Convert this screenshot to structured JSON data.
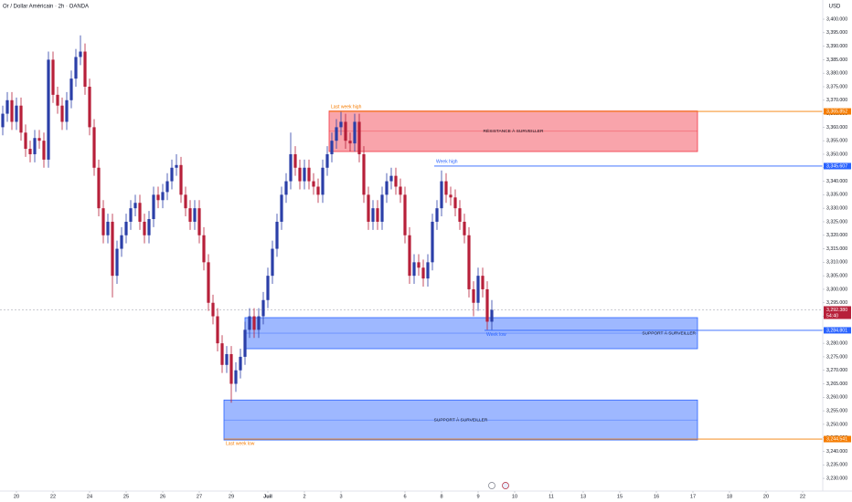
{
  "chart_data": {
    "type": "candlestick",
    "title": "Or / Dollar Américain · 2h · OANDA",
    "currency": "USD",
    "up_color": "#2b3fa8",
    "down_color": "#b7203a",
    "open": [
      3360,
      3365,
      3370,
      3362,
      3368,
      3358,
      3352,
      3350,
      3356,
      3355,
      3348,
      3385,
      3372,
      3368,
      3362,
      3370,
      3378,
      3386,
      3388,
      3375,
      3360,
      3345,
      3330,
      3320,
      3325,
      3305,
      3315,
      3320,
      3325,
      3330,
      3332,
      3325,
      3320,
      3326,
      3335,
      3333,
      3336,
      3340,
      3345,
      3346,
      3335,
      3330,
      3325,
      3330,
      3320,
      3310,
      3295,
      3290,
      3280,
      3272,
      3276,
      3265,
      3270,
      3275,
      3285,
      3290,
      3285,
      3290,
      3296,
      3305,
      3315,
      3325,
      3335,
      3340,
      3350,
      3345,
      3340,
      3345,
      3340,
      3338,
      3335,
      3345,
      3350,
      3355,
      3360,
      3362,
      3355,
      3354,
      3362,
      3350,
      3335,
      3325,
      3330,
      3325,
      3335,
      3340,
      3342,
      3338,
      3335,
      3320,
      3305,
      3310,
      3308,
      3304,
      3310,
      3325,
      3330,
      3340,
      3335,
      3334,
      3330,
      3325,
      3320,
      3300,
      3295,
      3305,
      3300,
      3288
    ],
    "high": [
      3368,
      3373,
      3373,
      3371,
      3371,
      3361,
      3355,
      3359,
      3359,
      3358,
      3388,
      3388,
      3375,
      3371,
      3373,
      3381,
      3389,
      3394,
      3391,
      3378,
      3363,
      3348,
      3333,
      3328,
      3328,
      3318,
      3323,
      3328,
      3333,
      3335,
      3335,
      3328,
      3329,
      3338,
      3338,
      3339,
      3343,
      3348,
      3350,
      3349,
      3338,
      3333,
      3333,
      3333,
      3323,
      3313,
      3298,
      3293,
      3283,
      3279,
      3279,
      3273,
      3278,
      3288,
      3293,
      3293,
      3293,
      3299,
      3308,
      3318,
      3328,
      3338,
      3343,
      3358,
      3353,
      3348,
      3348,
      3348,
      3343,
      3341,
      3348,
      3353,
      3358,
      3363,
      3366,
      3365,
      3358,
      3365,
      3365,
      3353,
      3338,
      3333,
      3333,
      3338,
      3343,
      3345,
      3345,
      3341,
      3338,
      3323,
      3313,
      3313,
      3311,
      3313,
      3328,
      3333,
      3344,
      3343,
      3338,
      3337,
      3333,
      3328,
      3323,
      3303,
      3308,
      3308,
      3303,
      3296
    ],
    "low": [
      3357,
      3362,
      3359,
      3359,
      3355,
      3349,
      3347,
      3347,
      3352,
      3345,
      3345,
      3369,
      3365,
      3359,
      3359,
      3367,
      3375,
      3383,
      3372,
      3357,
      3342,
      3327,
      3317,
      3317,
      3297,
      3302,
      3312,
      3317,
      3322,
      3327,
      3322,
      3317,
      3317,
      3323,
      3330,
      3330,
      3333,
      3337,
      3342,
      3332,
      3327,
      3322,
      3322,
      3317,
      3307,
      3292,
      3287,
      3277,
      3269,
      3269,
      3258,
      3262,
      3267,
      3272,
      3282,
      3282,
      3282,
      3287,
      3293,
      3302,
      3312,
      3322,
      3332,
      3337,
      3342,
      3337,
      3337,
      3337,
      3335,
      3332,
      3332,
      3342,
      3347,
      3352,
      3357,
      3352,
      3351,
      3351,
      3347,
      3332,
      3322,
      3322,
      3322,
      3322,
      3332,
      3337,
      3335,
      3332,
      3317,
      3302,
      3302,
      3305,
      3301,
      3301,
      3307,
      3322,
      3327,
      3332,
      3331,
      3327,
      3322,
      3317,
      3297,
      3290,
      3292,
      3297,
      3285,
      3285
    ],
    "close": [
      3365,
      3370,
      3362,
      3368,
      3358,
      3352,
      3350,
      3356,
      3355,
      3348,
      3385,
      3372,
      3368,
      3362,
      3370,
      3378,
      3386,
      3388,
      3375,
      3360,
      3345,
      3330,
      3320,
      3325,
      3305,
      3315,
      3320,
      3325,
      3330,
      3332,
      3325,
      3320,
      3326,
      3335,
      3333,
      3336,
      3340,
      3345,
      3346,
      3335,
      3330,
      3325,
      3330,
      3320,
      3310,
      3295,
      3290,
      3280,
      3272,
      3276,
      3265,
      3270,
      3275,
      3285,
      3290,
      3285,
      3290,
      3296,
      3305,
      3315,
      3325,
      3335,
      3340,
      3350,
      3345,
      3340,
      3345,
      3340,
      3338,
      3335,
      3345,
      3350,
      3355,
      3360,
      3362,
      3355,
      3354,
      3362,
      3350,
      3335,
      3325,
      3330,
      3325,
      3335,
      3340,
      3342,
      3338,
      3335,
      3320,
      3305,
      3310,
      3308,
      3304,
      3310,
      3325,
      3330,
      3340,
      3335,
      3334,
      3330,
      3325,
      3320,
      3300,
      3295,
      3305,
      3300,
      3288,
      3292.38
    ],
    "xlim": [
      -0.6,
      179.4
    ],
    "xticks": [
      {
        "value": 3,
        "label": "20"
      },
      {
        "value": 11,
        "label": "22"
      },
      {
        "value": 19,
        "label": "24"
      },
      {
        "value": 27,
        "label": "25"
      },
      {
        "value": 35,
        "label": "26"
      },
      {
        "value": 43,
        "label": "27"
      },
      {
        "value": 50,
        "label": "29"
      },
      {
        "value": 58,
        "label": "Juil"
      },
      {
        "value": 66,
        "label": "2"
      },
      {
        "value": 74,
        "label": "3"
      },
      {
        "value": 88,
        "label": "6"
      },
      {
        "value": 96,
        "label": "8"
      },
      {
        "value": 104,
        "label": "9"
      },
      {
        "value": 112,
        "label": "10"
      },
      {
        "value": 120,
        "label": "11"
      },
      {
        "value": 127,
        "label": "13"
      },
      {
        "value": 135,
        "label": "15"
      },
      {
        "value": 143,
        "label": "16"
      },
      {
        "value": 151,
        "label": "17"
      },
      {
        "value": 159,
        "label": "18"
      },
      {
        "value": 167,
        "label": "20"
      },
      {
        "value": 175,
        "label": "22"
      }
    ],
    "ylim": [
      3225.3,
      3407.1
    ],
    "yticks": [
      {
        "value": 3230,
        "label": "3,230.000"
      },
      {
        "value": 3235,
        "label": "3,235.000"
      },
      {
        "value": 3240,
        "label": "3,240.000"
      },
      {
        "value": 3245,
        "label": "3,245.000"
      },
      {
        "value": 3250,
        "label": "3,250.000"
      },
      {
        "value": 3255,
        "label": "3,255.000"
      },
      {
        "value": 3260,
        "label": "3,260.000"
      },
      {
        "value": 3265,
        "label": "3,265.000"
      },
      {
        "value": 3270,
        "label": "3,270.000"
      },
      {
        "value": 3275,
        "label": "3,275.000"
      },
      {
        "value": 3280,
        "label": "3,280.000"
      },
      {
        "value": 3285,
        "label": "3,285.000"
      },
      {
        "value": 3290,
        "label": "3,290.000"
      },
      {
        "value": 3295,
        "label": "3,295.000"
      },
      {
        "value": 3300,
        "label": "3,300.000"
      },
      {
        "value": 3305,
        "label": "3,305.000"
      },
      {
        "value": 3310,
        "label": "3,310.000"
      },
      {
        "value": 3315,
        "label": "3,315.000"
      },
      {
        "value": 3320,
        "label": "3,320.000"
      },
      {
        "value": 3325,
        "label": "3,325.000"
      },
      {
        "value": 3330,
        "label": "3,330.000"
      },
      {
        "value": 3335,
        "label": "3,335.000"
      },
      {
        "value": 3340,
        "label": "3,340.000"
      },
      {
        "value": 3345,
        "label": "3,345.000"
      },
      {
        "value": 3350,
        "label": "3,350.000"
      },
      {
        "value": 3355,
        "label": "3,355.000"
      },
      {
        "value": 3360,
        "label": "3,360.000"
      },
      {
        "value": 3365,
        "label": "3,365.000"
      },
      {
        "value": 3370,
        "label": "3,370.000"
      },
      {
        "value": 3375,
        "label": "3,375.000"
      },
      {
        "value": 3380,
        "label": "3,380.000"
      },
      {
        "value": 3385,
        "label": "3,385.000"
      },
      {
        "value": 3390,
        "label": "3,390.000"
      },
      {
        "value": 3395,
        "label": "3,395.000"
      },
      {
        "value": 3400,
        "label": "3,400.000"
      }
    ],
    "zones": [
      {
        "label": "RÉSISTANCE À SURVEILLER",
        "top": 3366,
        "bottom": 3351,
        "x_start": 71.4,
        "x_end": 152,
        "color": "#f23645",
        "label_align": "middle"
      },
      {
        "label": "SUPPORT À SURVEILLER",
        "top": 3289.5,
        "bottom": 3278,
        "x_start": 53,
        "x_end": 152,
        "color": "#2962ff",
        "label_align": "end"
      },
      {
        "label": "SUPPORT À SURVEILLER",
        "top": 3259,
        "bottom": 3244.2,
        "x_start": 48.4,
        "x_end": 152,
        "color": "#2962ff",
        "label_align": "middle"
      }
    ],
    "levels": [
      {
        "name": "Last week high",
        "value": 3365.852,
        "label": "3,365.852",
        "x_start": 71.4,
        "color": "#f57c00",
        "name_side": "above"
      },
      {
        "name": "Week high",
        "value": 3345.607,
        "label": "3,345.607",
        "x_start": 94.4,
        "color": "#2962ff",
        "name_side": "above"
      },
      {
        "name": "Week low",
        "value": 3284.801,
        "label": "3,284.801",
        "x_start": 105.4,
        "color": "#2962ff",
        "name_side": "below"
      },
      {
        "name": "Last week low",
        "value": 3244.541,
        "label": "3,244.541",
        "x_start": 48.4,
        "color": "#f57c00",
        "name_side": "below"
      }
    ],
    "last_price": {
      "value": 3292.38,
      "label": "3,292.380",
      "countdown": "54:40",
      "color": "#b7203a"
    }
  }
}
